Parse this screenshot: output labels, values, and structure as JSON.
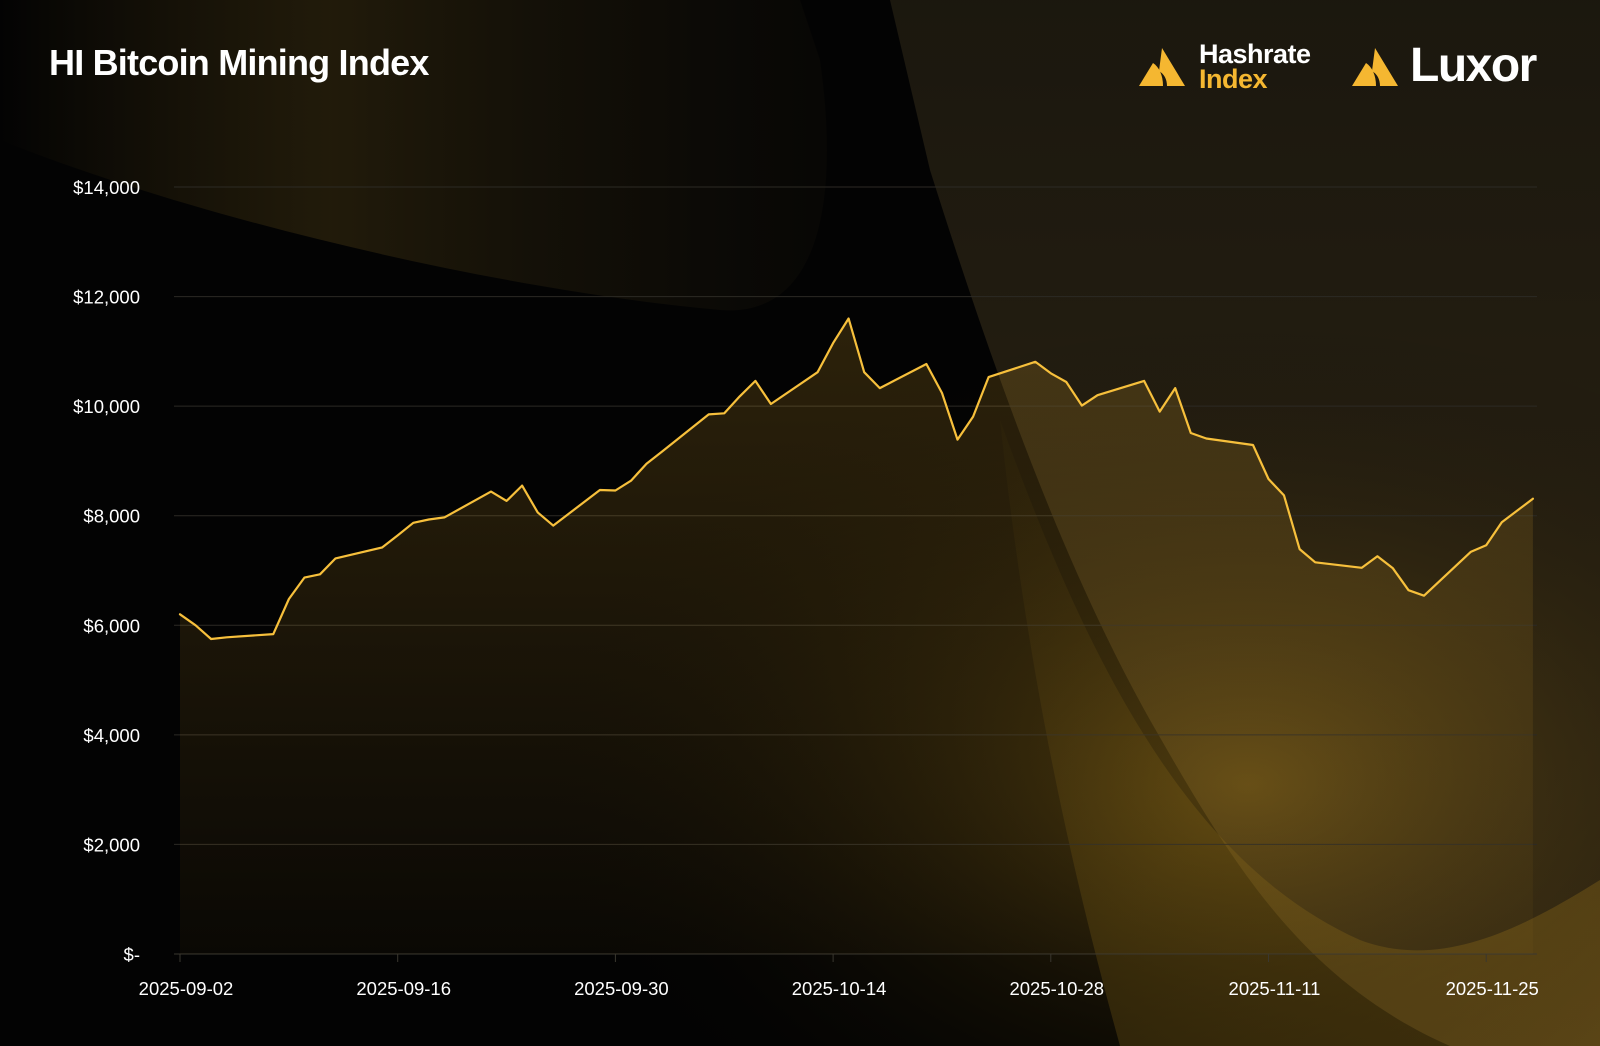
{
  "header": {
    "title": "HI Bitcoin Mining Index"
  },
  "brands": {
    "hashrate_index": {
      "line1": "Hashrate",
      "line2": "Index",
      "icon": "hashrate-index-logo-icon",
      "color": "#f5b731"
    },
    "luxor": {
      "name": "Luxor",
      "icon": "luxor-logo-icon"
    }
  },
  "colors": {
    "background": "#030303",
    "line": "#f7c03c",
    "area_fill": "#f5b731",
    "gridline": "#2c2a24",
    "text": "#ffffff"
  },
  "chart_data": {
    "type": "area",
    "title": "HI Bitcoin Mining Index",
    "xlabel": "",
    "ylabel": "",
    "xlim": [
      "2025-09-02",
      "2025-11-26"
    ],
    "ylim": [
      0,
      14000
    ],
    "yticks": [
      0,
      2000,
      4000,
      6000,
      8000,
      10000,
      12000,
      14000
    ],
    "ytick_labels": [
      "$-",
      "$2,000",
      "$4,000",
      "$6,000",
      "$8,000",
      "$10,000",
      "$12,000",
      "$14,000"
    ],
    "xticks": [
      "2025-09-02",
      "2025-09-16",
      "2025-09-30",
      "2025-10-14",
      "2025-10-28",
      "2025-11-11",
      "2025-11-25"
    ],
    "grid": true,
    "legend": "none",
    "series": [
      {
        "points": [
          [
            "2025-09-02",
            6200
          ],
          [
            "2025-09-03",
            6000
          ],
          [
            "2025-09-04",
            5750
          ],
          [
            "2025-09-05",
            5780
          ],
          [
            "2025-09-08",
            5840
          ],
          [
            "2025-09-09",
            6480
          ],
          [
            "2025-09-10",
            6870
          ],
          [
            "2025-09-11",
            6930
          ],
          [
            "2025-09-12",
            7220
          ],
          [
            "2025-09-15",
            7420
          ],
          [
            "2025-09-16",
            7640
          ],
          [
            "2025-09-17",
            7870
          ],
          [
            "2025-09-18",
            7930
          ],
          [
            "2025-09-19",
            7970
          ],
          [
            "2025-09-22",
            8440
          ],
          [
            "2025-09-23",
            8270
          ],
          [
            "2025-09-24",
            8550
          ],
          [
            "2025-09-25",
            8060
          ],
          [
            "2025-09-26",
            7820
          ],
          [
            "2025-09-29",
            8470
          ],
          [
            "2025-09-30",
            8460
          ],
          [
            "2025-10-01",
            8640
          ],
          [
            "2025-10-02",
            8950
          ],
          [
            "2025-10-03",
            9170
          ],
          [
            "2025-10-06",
            9850
          ],
          [
            "2025-10-07",
            9870
          ],
          [
            "2025-10-08",
            10180
          ],
          [
            "2025-10-09",
            10460
          ],
          [
            "2025-10-10",
            10040
          ],
          [
            "2025-10-13",
            10620
          ],
          [
            "2025-10-14",
            11150
          ],
          [
            "2025-10-15",
            11600
          ],
          [
            "2025-10-16",
            10620
          ],
          [
            "2025-10-17",
            10330
          ],
          [
            "2025-10-20",
            10770
          ],
          [
            "2025-10-21",
            10240
          ],
          [
            "2025-10-22",
            9390
          ],
          [
            "2025-10-23",
            9810
          ],
          [
            "2025-10-24",
            10530
          ],
          [
            "2025-10-27",
            10810
          ],
          [
            "2025-10-28",
            10600
          ],
          [
            "2025-10-29",
            10440
          ],
          [
            "2025-10-30",
            10010
          ],
          [
            "2025-10-31",
            10200
          ],
          [
            "2025-11-03",
            10460
          ],
          [
            "2025-11-04",
            9900
          ],
          [
            "2025-11-05",
            10330
          ],
          [
            "2025-11-06",
            9510
          ],
          [
            "2025-11-07",
            9410
          ],
          [
            "2025-11-10",
            9290
          ],
          [
            "2025-11-11",
            8670
          ],
          [
            "2025-11-12",
            8370
          ],
          [
            "2025-11-13",
            7390
          ],
          [
            "2025-11-14",
            7150
          ],
          [
            "2025-11-17",
            7050
          ],
          [
            "2025-11-18",
            7260
          ],
          [
            "2025-11-19",
            7040
          ],
          [
            "2025-11-20",
            6640
          ],
          [
            "2025-11-21",
            6540
          ],
          [
            "2025-11-24",
            7340
          ],
          [
            "2025-11-25",
            7460
          ],
          [
            "2025-11-26",
            7880
          ],
          [
            "2025-11-28",
            8310
          ]
        ]
      }
    ]
  }
}
